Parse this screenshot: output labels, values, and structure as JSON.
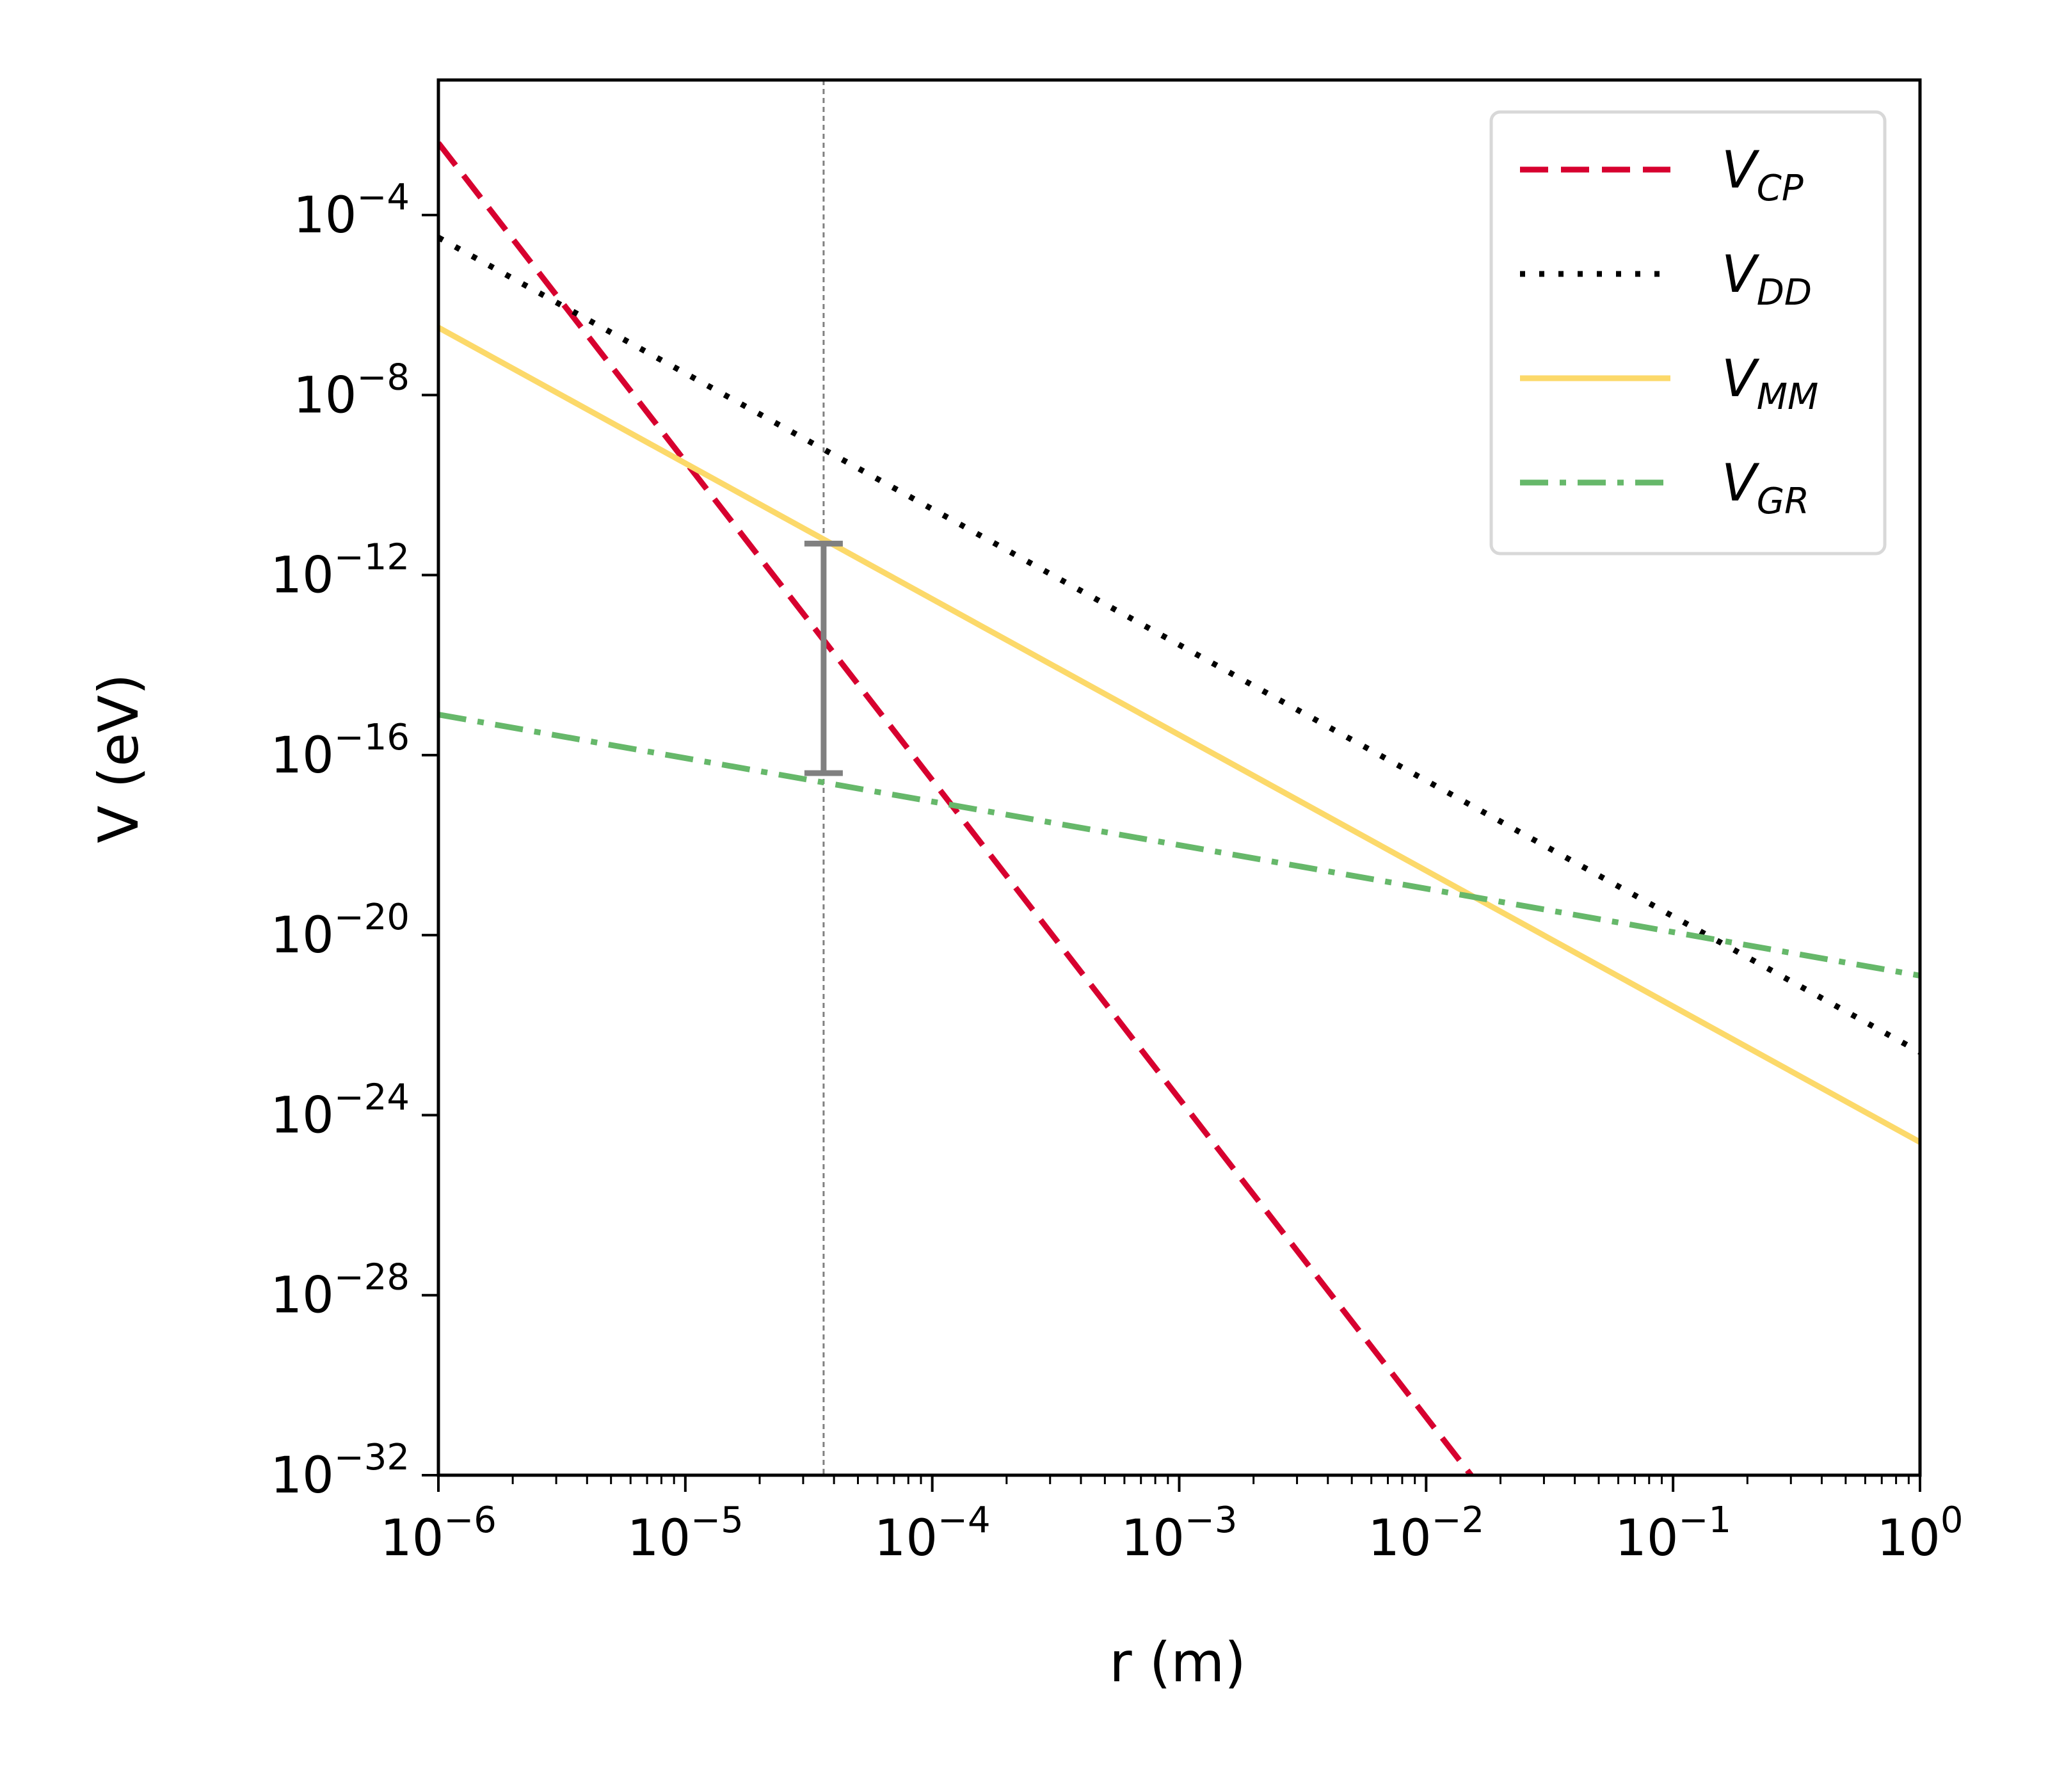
{
  "chart_data": {
    "type": "line",
    "title": "",
    "xlabel": "r (m)",
    "ylabel": "V (eV)",
    "xscale": "log",
    "yscale": "log",
    "xlim_exp": [
      -6,
      0
    ],
    "ylim_exp": [
      -32,
      -1
    ],
    "x_ticks": [
      {
        "base": "10",
        "exp": "−6",
        "value_exp": -6
      },
      {
        "base": "10",
        "exp": "−5",
        "value_exp": -5
      },
      {
        "base": "10",
        "exp": "−4",
        "value_exp": -4
      },
      {
        "base": "10",
        "exp": "−3",
        "value_exp": -3
      },
      {
        "base": "10",
        "exp": "−2",
        "value_exp": -2
      },
      {
        "base": "10",
        "exp": "−1",
        "value_exp": -1
      },
      {
        "base": "10",
        "exp": "0",
        "value_exp": 0
      }
    ],
    "y_ticks": [
      {
        "base": "10",
        "exp": "−4",
        "value_exp": -4
      },
      {
        "base": "10",
        "exp": "−8",
        "value_exp": -8
      },
      {
        "base": "10",
        "exp": "−12",
        "value_exp": -12
      },
      {
        "base": "10",
        "exp": "−16",
        "value_exp": -16
      },
      {
        "base": "10",
        "exp": "−20",
        "value_exp": -20
      },
      {
        "base": "10",
        "exp": "−24",
        "value_exp": -24
      },
      {
        "base": "10",
        "exp": "−28",
        "value_exp": -28
      },
      {
        "base": "10",
        "exp": "−32",
        "value_exp": -32
      }
    ],
    "series": [
      {
        "name": "V",
        "sub": "CP",
        "color": "#d7002f",
        "dash": "dashed",
        "x_exp": [
          -6,
          -1.818
        ],
        "y_exp": [
          -2.4,
          -32.0
        ]
      },
      {
        "name": "V",
        "sub": "DD",
        "color": "#000000",
        "dash": "dotted",
        "x_exp": [
          -6,
          0
        ],
        "y_exp": [
          -4.5,
          -22.6
        ]
      },
      {
        "name": "V",
        "sub": "MM",
        "color": "#fcd96a",
        "dash": "solid",
        "x_exp": [
          -6,
          0
        ],
        "y_exp": [
          -6.5,
          -24.6
        ]
      },
      {
        "name": "V",
        "sub": "GR",
        "color": "#66b86a",
        "dash": "dashdot",
        "x_exp": [
          -6,
          0
        ],
        "y_exp": [
          -15.1,
          -20.9
        ]
      }
    ],
    "vline": {
      "x_exp": -4.44,
      "color": "#808080"
    },
    "errorbar": {
      "x_exp": -4.44,
      "y_exp": [
        -11.3,
        -16.4
      ],
      "color": "#808080"
    },
    "legend_position": "top-right"
  }
}
